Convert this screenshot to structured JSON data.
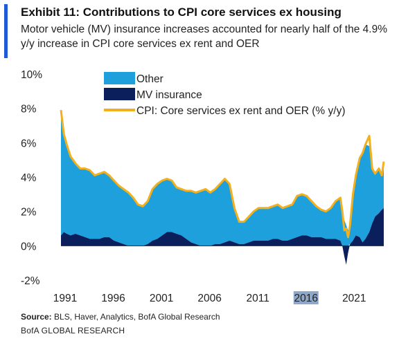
{
  "header": {
    "title": "Exhibit 11: Contributions to CPI core services ex housing",
    "subtitle": "Motor vehicle (MV) insurance increases accounted for nearly half of the 4.9% y/y increase in CPI core services ex rent and OER"
  },
  "footer": {
    "source_label": "Source:",
    "source_text": "BLS, Haver, Analytics, BofA Global Research",
    "brand": "BofA GLOBAL RESEARCH"
  },
  "colors": {
    "accent": "#1f5bd6",
    "other": "#1ea0dc",
    "mv_insurance": "#0b1f5c",
    "cpi_line": "#f2b01e",
    "highlight": "#8fa7c9"
  },
  "chart_data": {
    "type": "area",
    "title": "",
    "xlabel": "",
    "ylabel": "",
    "ylim": [
      -2,
      10
    ],
    "xlim": [
      1991,
      2024.5
    ],
    "y_ticks": [
      "-2%",
      "0%",
      "2%",
      "4%",
      "6%",
      "8%",
      "10%"
    ],
    "y_tick_values": [
      -2,
      0,
      2,
      4,
      6,
      8,
      10
    ],
    "x_ticks": [
      "1991",
      "1996",
      "2001",
      "2006",
      "2011",
      "2016",
      "2021"
    ],
    "x_tick_values": [
      1991,
      1996,
      2001,
      2006,
      2011,
      2016,
      2021
    ],
    "highlighted_x_tick": "2016",
    "grid": false,
    "legend_position": "top-left",
    "legend": [
      "Other",
      "MV insurance",
      "CPI: Core services ex rent and OER (% y/y)"
    ],
    "x": [
      1991.0,
      1991.3,
      1991.6,
      1992.0,
      1992.5,
      1993.0,
      1993.5,
      1994.0,
      1994.5,
      1995.0,
      1995.5,
      1996.0,
      1996.5,
      1997.0,
      1997.5,
      1998.0,
      1998.5,
      1999.0,
      1999.5,
      2000.0,
      2000.5,
      2001.0,
      2001.5,
      2002.0,
      2002.5,
      2003.0,
      2003.5,
      2004.0,
      2004.5,
      2005.0,
      2005.5,
      2006.0,
      2006.5,
      2007.0,
      2007.5,
      2008.0,
      2008.5,
      2009.0,
      2009.5,
      2010.0,
      2010.5,
      2011.0,
      2011.5,
      2012.0,
      2012.5,
      2013.0,
      2013.5,
      2014.0,
      2014.5,
      2015.0,
      2015.5,
      2016.0,
      2016.5,
      2017.0,
      2017.5,
      2018.0,
      2018.5,
      2019.0,
      2019.5,
      2020.0,
      2020.2,
      2020.4,
      2020.6,
      2020.8,
      2021.0,
      2021.3,
      2021.6,
      2022.0,
      2022.3,
      2022.6,
      2023.0,
      2023.3,
      2023.6,
      2024.0,
      2024.3,
      2024.5
    ],
    "series": [
      {
        "name": "MV insurance",
        "values": [
          0.6,
          0.8,
          0.7,
          0.6,
          0.7,
          0.6,
          0.5,
          0.4,
          0.4,
          0.4,
          0.5,
          0.5,
          0.3,
          0.2,
          0.1,
          0.0,
          0.0,
          0.0,
          0.0,
          0.1,
          0.3,
          0.4,
          0.6,
          0.8,
          0.8,
          0.7,
          0.6,
          0.4,
          0.2,
          0.1,
          0.0,
          0.0,
          0.0,
          0.1,
          0.1,
          0.2,
          0.3,
          0.2,
          0.1,
          0.1,
          0.2,
          0.3,
          0.3,
          0.3,
          0.3,
          0.4,
          0.4,
          0.3,
          0.3,
          0.4,
          0.5,
          0.6,
          0.6,
          0.5,
          0.5,
          0.5,
          0.4,
          0.4,
          0.4,
          0.3,
          0.0,
          -0.6,
          -1.1,
          -0.4,
          0.1,
          0.3,
          0.6,
          0.5,
          0.2,
          0.4,
          0.8,
          1.3,
          1.7,
          1.9,
          2.1,
          2.2
        ]
      },
      {
        "name": "Other",
        "values": [
          7.2,
          5.7,
          5.1,
          4.6,
          4.1,
          3.9,
          4.0,
          4.0,
          3.7,
          3.8,
          3.8,
          3.6,
          3.5,
          3.3,
          3.2,
          3.1,
          2.8,
          2.4,
          2.3,
          2.5,
          3.0,
          3.2,
          3.2,
          3.1,
          3.0,
          2.7,
          2.7,
          2.8,
          3.0,
          3.0,
          3.2,
          3.3,
          3.1,
          3.2,
          3.5,
          3.7,
          3.3,
          2.0,
          1.3,
          1.3,
          1.5,
          1.7,
          1.9,
          1.9,
          1.9,
          1.9,
          2.0,
          1.9,
          2.0,
          2.0,
          2.4,
          2.4,
          2.3,
          2.1,
          1.8,
          1.6,
          1.6,
          1.8,
          2.2,
          2.5,
          2.0,
          1.5,
          1.2,
          0.9,
          1.1,
          2.7,
          3.5,
          4.6,
          5.2,
          5.5,
          5.0,
          3.2,
          2.5,
          2.6,
          2.0,
          2.5
        ]
      },
      {
        "name": "CPI: Core services ex rent and OER (% y/y)",
        "values": [
          7.9,
          6.5,
          5.9,
          5.2,
          4.8,
          4.5,
          4.5,
          4.4,
          4.1,
          4.2,
          4.3,
          4.1,
          3.8,
          3.5,
          3.3,
          3.1,
          2.8,
          2.4,
          2.3,
          2.6,
          3.3,
          3.6,
          3.8,
          3.9,
          3.8,
          3.4,
          3.3,
          3.2,
          3.2,
          3.1,
          3.2,
          3.3,
          3.1,
          3.3,
          3.6,
          3.9,
          3.6,
          2.2,
          1.4,
          1.4,
          1.7,
          2.0,
          2.2,
          2.2,
          2.2,
          2.3,
          2.4,
          2.2,
          2.3,
          2.4,
          2.9,
          3.0,
          2.9,
          2.6,
          2.3,
          2.1,
          2.0,
          2.2,
          2.6,
          2.8,
          2.0,
          0.9,
          1.0,
          0.5,
          1.2,
          3.0,
          4.1,
          5.1,
          5.4,
          5.9,
          6.4,
          4.5,
          4.2,
          4.5,
          4.1,
          4.9
        ]
      }
    ]
  }
}
